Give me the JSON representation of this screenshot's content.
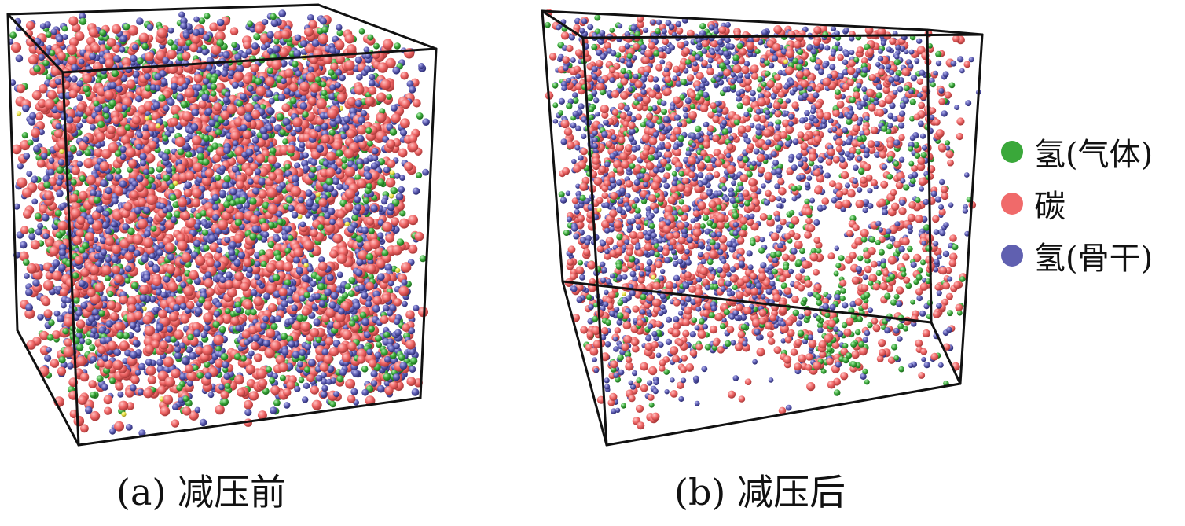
{
  "panels": [
    {
      "id": "a",
      "caption": "(a) 减压前",
      "state": "dense-uniform"
    },
    {
      "id": "b",
      "caption": "(b) 减压后",
      "state": "expanded-with-voids"
    }
  ],
  "legend": {
    "items": [
      {
        "label": "氢(气体)",
        "color": "#3aa83a",
        "icon": "green-dot-icon"
      },
      {
        "label": "碳",
        "color": "#f06a6a",
        "icon": "red-dot-icon"
      },
      {
        "label": "氢(骨干)",
        "color": "#6060b0",
        "icon": "blue-dot-icon"
      }
    ]
  },
  "colors": {
    "gas_hydrogen": "#3aa83a",
    "carbon": "#f06a6a",
    "backbone_hydrogen": "#5a5aaa",
    "trace": "#e8e040",
    "box_edge": "#111111"
  }
}
